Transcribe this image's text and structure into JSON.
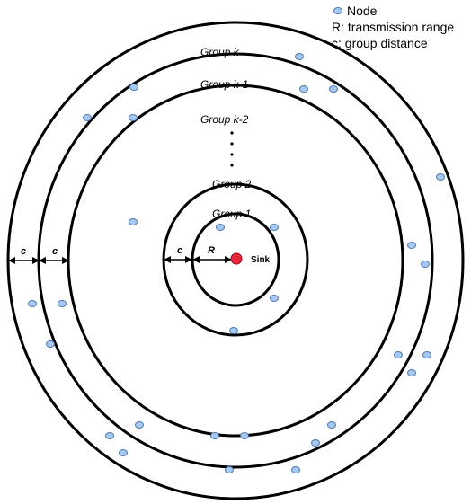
{
  "legend": {
    "node": "Node",
    "range": "R: transmission range",
    "distance": "c: group distance"
  },
  "groups": {
    "outer": "Group k",
    "second": "Group k-1",
    "third": "Group k-2",
    "g2": "Group 2",
    "g1": "Group 1"
  },
  "labels": {
    "sink": "Sink",
    "c": "c",
    "r": "R"
  },
  "colors": {
    "node_fill": "#a9c8ef",
    "node_stroke": "#4a79b4",
    "sink": "#e8243c"
  }
}
